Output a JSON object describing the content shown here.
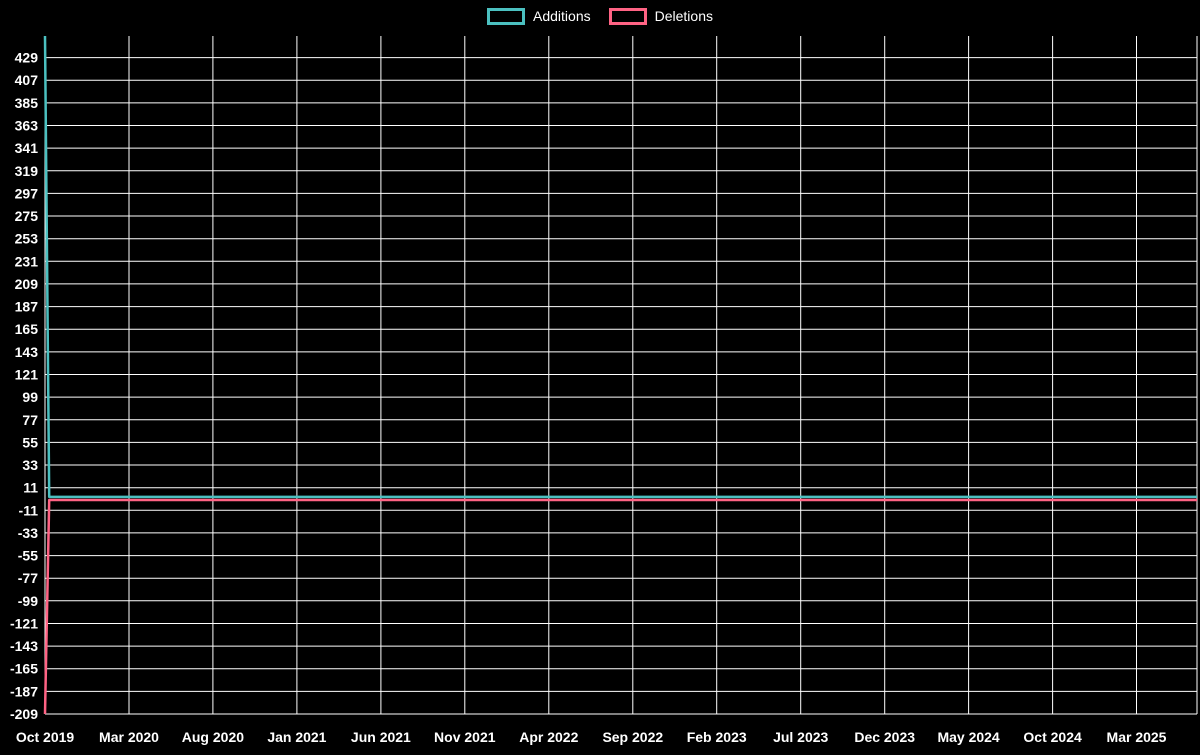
{
  "chart_data": {
    "type": "line",
    "title": "",
    "xlabel": "",
    "ylabel": "",
    "legend_position": "top",
    "grid": true,
    "colors": {
      "background": "#000000",
      "grid": "#ffffff",
      "text": "#ffffff",
      "additions": "#4bc0c0",
      "deletions": "#ff6384"
    },
    "x_tick_labels": [
      "Oct 2019",
      "Mar 2020",
      "Aug 2020",
      "Jan 2021",
      "Jun 2021",
      "Nov 2021",
      "Apr 2022",
      "Sep 2022",
      "Feb 2023",
      "Jul 2023",
      "Dec 2023",
      "May 2024",
      "Oct 2024",
      "Mar 2025"
    ],
    "months_per_tick": 5,
    "x_months_range": [
      0,
      68.6
    ],
    "y_ticks": [
      429,
      407,
      385,
      363,
      341,
      319,
      297,
      275,
      253,
      231,
      209,
      187,
      165,
      143,
      121,
      99,
      77,
      55,
      33,
      11,
      -11,
      -33,
      -55,
      -77,
      -99,
      -121,
      -143,
      -165,
      -187,
      -209
    ],
    "y_range": [
      -209,
      450
    ],
    "series": [
      {
        "name": "Additions",
        "color": "#4bc0c0",
        "points": [
          [
            0,
            450
          ],
          [
            0.25,
            2
          ],
          [
            68.6,
            2
          ]
        ]
      },
      {
        "name": "Deletions",
        "color": "#ff6384",
        "points": [
          [
            0,
            -209
          ],
          [
            0.25,
            -1
          ],
          [
            68.6,
            -1
          ]
        ]
      }
    ]
  }
}
